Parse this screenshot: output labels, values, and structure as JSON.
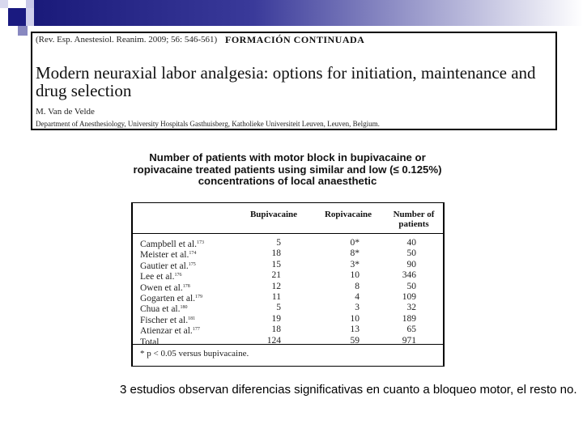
{
  "paper": {
    "citation": "(Rev. Esp. Anestesiol. Reanim. 2009; 56: 546-561)",
    "section": "FORMACIÓN CONTINUADA",
    "title": "Modern neuraxial labor analgesia: options for initiation, maintenance and drug selection",
    "author": "M. Van de Velde",
    "department": "Department of Anesthesiology, University Hospitals Gasthuisberg, Katholieke Universiteit Leuven, Leuven, Belgium."
  },
  "table": {
    "title": "Number of patients with motor block in bupivacaine or ropivacaine treated patients using similar and low (≤ 0.125%) concentrations of local anaesthetic",
    "headers": [
      "Bupivacaine",
      "Ropivacaine",
      "Number of patients"
    ],
    "rows": [
      {
        "study": "Campbell et al.",
        "ref": "173",
        "bupivacaine": "5",
        "ropivacaine": "0*",
        "patients": "40"
      },
      {
        "study": "Meister et al.",
        "ref": "174",
        "bupivacaine": "18",
        "ropivacaine": "8*",
        "patients": "50"
      },
      {
        "study": "Gautier et al.",
        "ref": "175",
        "bupivacaine": "15",
        "ropivacaine": "3*",
        "patients": "90"
      },
      {
        "study": "Lee et al.",
        "ref": "176",
        "bupivacaine": "21",
        "ropivacaine": "10",
        "patients": "346"
      },
      {
        "study": "Owen et al.",
        "ref": "178",
        "bupivacaine": "12",
        "ropivacaine": "8",
        "patients": "50"
      },
      {
        "study": "Gogarten et al.",
        "ref": "179",
        "bupivacaine": "11",
        "ropivacaine": "4",
        "patients": "109"
      },
      {
        "study": "Chua et al.",
        "ref": "180",
        "bupivacaine": "5",
        "ropivacaine": "3",
        "patients": "32"
      },
      {
        "study": "Fischer et al.",
        "ref": "181",
        "bupivacaine": "19",
        "ropivacaine": "10",
        "patients": "189"
      },
      {
        "study": "Atienzar et al.",
        "ref": "177",
        "bupivacaine": "18",
        "ropivacaine": "13",
        "patients": "65"
      },
      {
        "study": "Total",
        "ref": "",
        "bupivacaine": "124",
        "ropivacaine": "59",
        "patients": "971"
      }
    ],
    "footnote": "* p < 0.05 versus bupivacaine."
  },
  "caption": "3 estudios observan diferencias significativas en cuanto a bloqueo motor, el resto no.",
  "colors": {
    "accent": "#1a1a7a",
    "square_light": "#c8c8e8",
    "square_mid": "#8888c0"
  }
}
